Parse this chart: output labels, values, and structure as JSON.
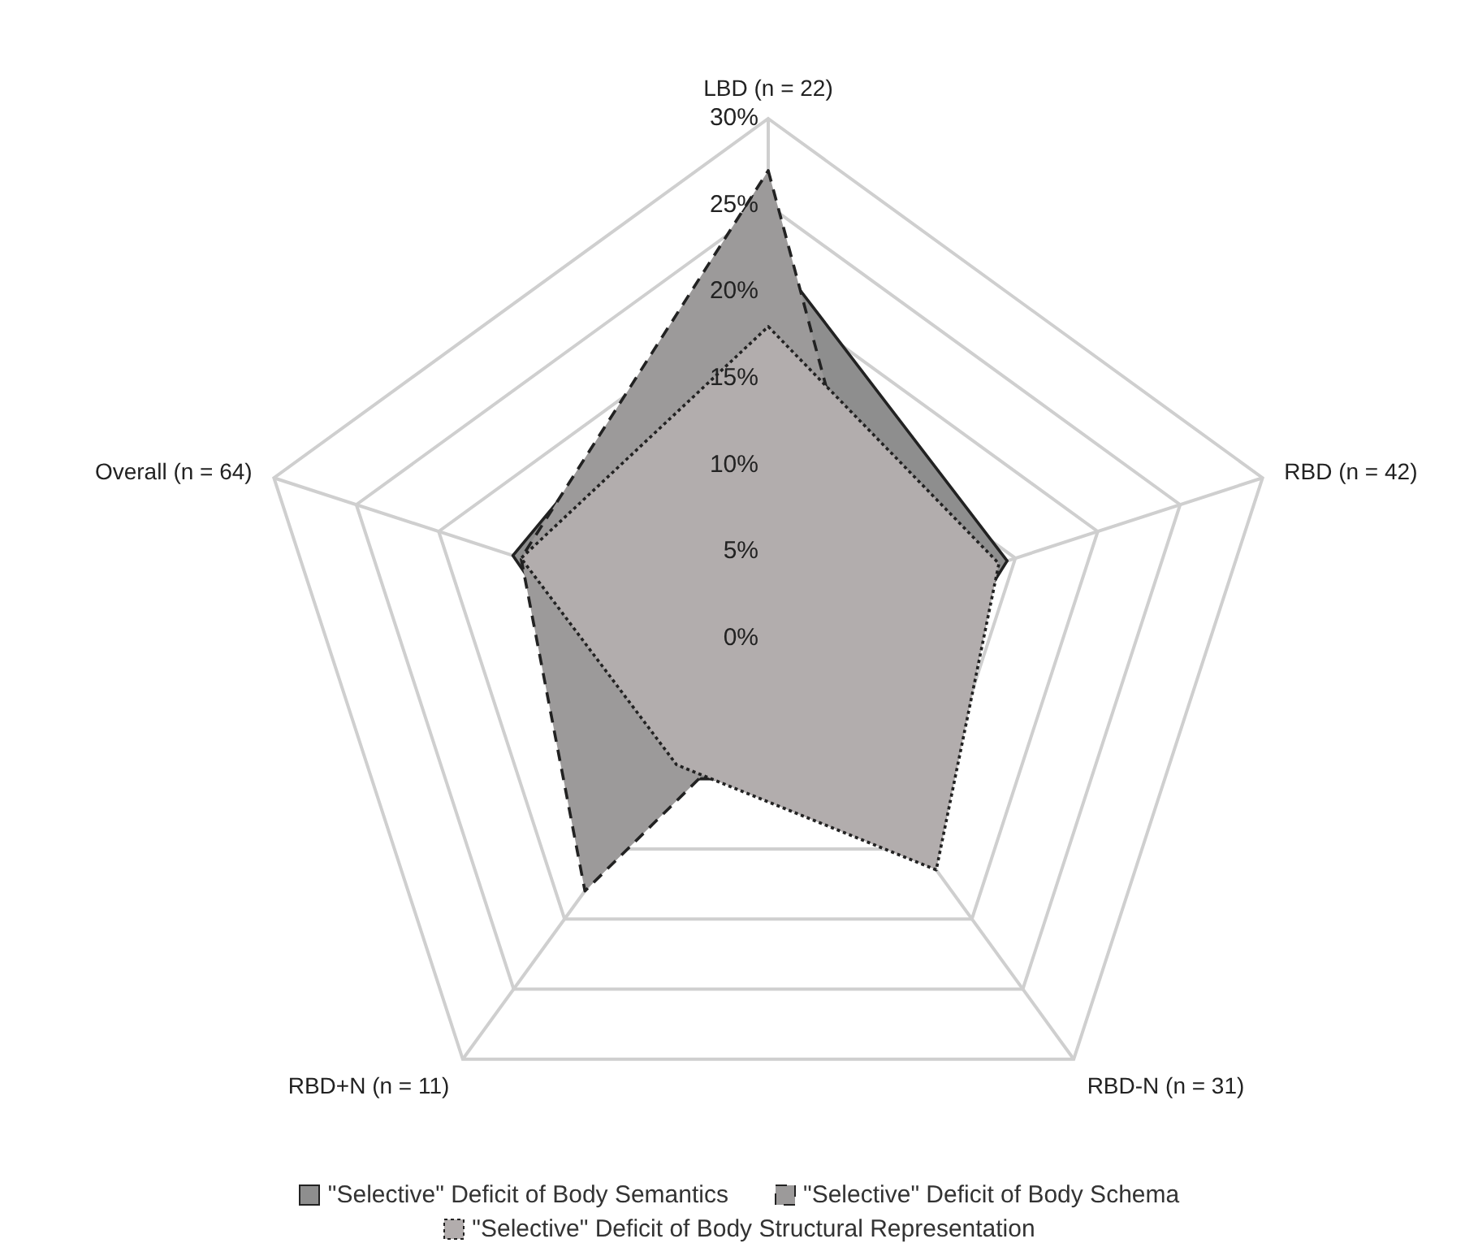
{
  "chart_data": {
    "type": "radar",
    "categories": [
      "LBD (n = 22)",
      "RBD (n = 42)",
      "RBD-N (n = 31)",
      "RBD+N (n = 11)",
      "Overall (n = 64)"
    ],
    "series": [
      {
        "name": "\"Selective\" Deficit of Body Semantics",
        "color": "#8e8e8e",
        "line_style": "solid",
        "values": [
          22.5,
          14.5,
          10,
          10,
          15.5
        ]
      },
      {
        "name": "\"Selective\" Deficit of Body Schema",
        "color": "#9c9a9a",
        "line_style": "dashed",
        "values": [
          27,
          7,
          3,
          18,
          15
        ]
      },
      {
        "name": "\"Selective\"  Deficit of Body Structural Representation",
        "color": "#b2adad",
        "line_style": "dotted",
        "values": [
          18,
          14,
          16.5,
          9,
          15
        ]
      }
    ],
    "ylim": [
      0,
      30
    ],
    "yticks": [
      {
        "value": 0,
        "label": "0%"
      },
      {
        "value": 5,
        "label": "5%"
      },
      {
        "value": 10,
        "label": "10%"
      },
      {
        "value": 15,
        "label": "15%"
      },
      {
        "value": 20,
        "label": "20%"
      },
      {
        "value": 25,
        "label": "25%"
      },
      {
        "value": 30,
        "label": "30%"
      }
    ],
    "grid": true,
    "legend": "bottom"
  }
}
